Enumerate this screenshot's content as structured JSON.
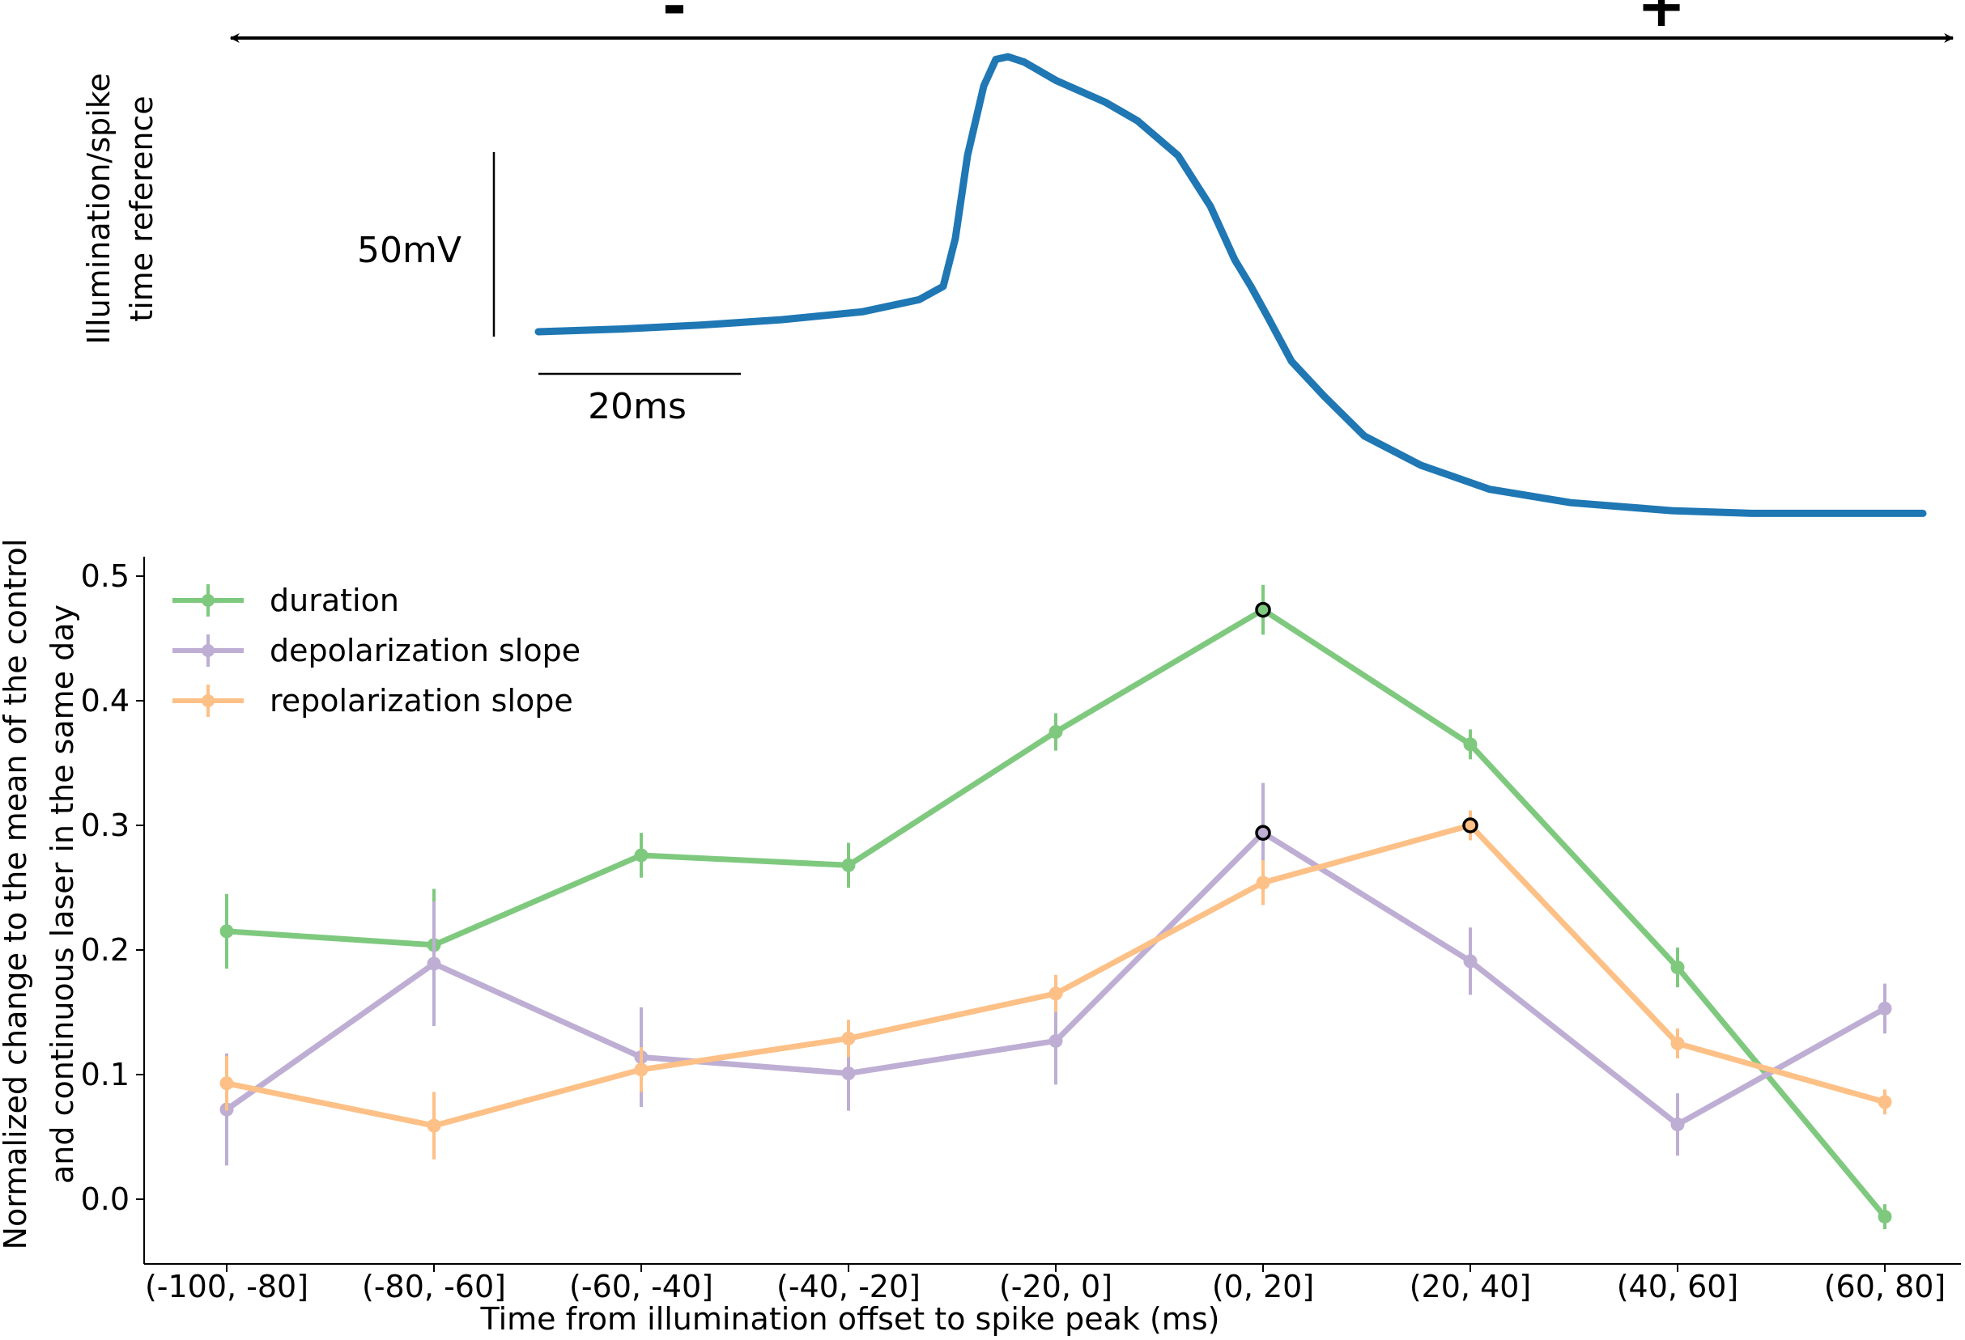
{
  "top_panel": {
    "ylabel_line1": "Illumination/spike",
    "ylabel_line2": "time reference",
    "scalebar_v_label": "50mV",
    "scalebar_h_label": "20ms",
    "minus_label": "-",
    "plus_label": "+",
    "trace_color": "#1f77b4",
    "voltage_trace": {
      "x_ms": [
        0,
        20,
        40,
        60,
        80,
        94,
        100,
        103,
        106,
        110,
        113,
        116,
        120,
        128,
        134,
        140,
        148,
        158,
        166,
        172,
        176,
        180,
        186,
        194,
        204,
        218,
        235,
        255,
        280,
        300,
        320,
        342
      ],
      "y_mv": [
        0,
        1,
        2.5,
        4.5,
        7.5,
        12,
        17,
        35,
        66,
        92,
        102,
        103,
        101,
        94,
        90,
        86,
        79,
        66,
        47,
        27,
        17,
        6,
        -11,
        -24,
        -39,
        -50,
        -59,
        -64,
        -67,
        -68,
        -68,
        -68
      ]
    }
  },
  "chart_data": {
    "type": "line",
    "xlabel": "Time from illumination offset to spike peak (ms)",
    "ylabel_line1": "Normalized change to the mean of the control",
    "ylabel_line2": "and continuous laser in the same day",
    "categories": [
      "(-100, -80]",
      "(-80, -60]",
      "(-60, -40]",
      "(-40, -20]",
      "(-20, 0]",
      "(0, 20]",
      "(20, 40]",
      "(40, 60]",
      "(60, 80]"
    ],
    "ylim": [
      -0.05,
      0.52
    ],
    "yticks": [
      0.0,
      0.1,
      0.2,
      0.3,
      0.4,
      0.5
    ],
    "ytick_labels": [
      "0.0",
      "0.1",
      "0.2",
      "0.3",
      "0.4",
      "0.5"
    ],
    "grid": false,
    "legend_position": "top-left",
    "series": [
      {
        "name": "duration",
        "color": "#7fc97f",
        "values": [
          0.215,
          0.204,
          0.276,
          0.268,
          0.375,
          0.473,
          0.365,
          0.186,
          -0.014
        ],
        "errors": [
          0.03,
          0.045,
          0.018,
          0.018,
          0.015,
          0.02,
          0.012,
          0.016,
          0.01
        ],
        "highlighted": [
          5
        ]
      },
      {
        "name": "depolarization slope",
        "color": "#beaed4",
        "values": [
          0.072,
          0.189,
          0.114,
          0.101,
          0.127,
          0.294,
          0.191,
          0.06,
          0.153
        ],
        "errors": [
          0.045,
          0.05,
          0.04,
          0.03,
          0.035,
          0.04,
          0.027,
          0.025,
          0.02
        ],
        "highlighted": [
          5
        ]
      },
      {
        "name": "repolarization slope",
        "color": "#fdc086",
        "values": [
          0.093,
          0.059,
          0.104,
          0.129,
          0.165,
          0.254,
          0.3,
          0.125,
          0.078
        ],
        "errors": [
          0.022,
          0.027,
          0.018,
          0.015,
          0.015,
          0.018,
          0.012,
          0.012,
          0.01
        ],
        "highlighted": [
          6
        ]
      }
    ]
  }
}
